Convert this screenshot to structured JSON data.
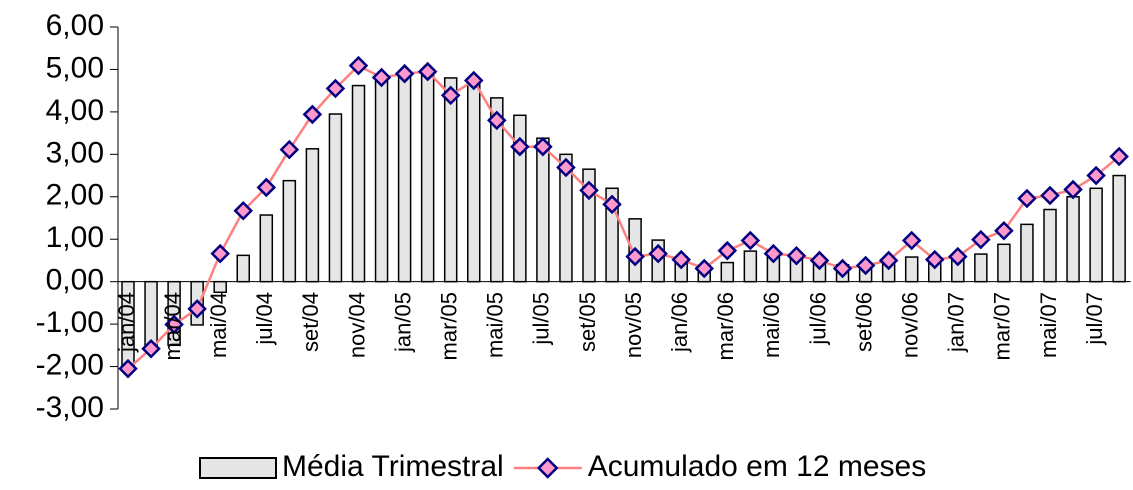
{
  "chart_data": {
    "type": "bar",
    "categories": [
      "jan/04",
      null,
      "mar/04",
      null,
      "mai/04",
      null,
      "jul/04",
      null,
      "set/04",
      null,
      "nov/04",
      null,
      "jan/05",
      null,
      "mar/05",
      null,
      "mai/05",
      null,
      "jul/05",
      null,
      "set/05",
      null,
      "nov/05",
      null,
      "jan/06",
      null,
      "mar/06",
      null,
      "mai/06",
      null,
      "jul/06",
      null,
      "set/06",
      null,
      "nov/06",
      null,
      "jan/07",
      null,
      "mar/07",
      null,
      "mai/07",
      null,
      "jul/07",
      null
    ],
    "series": [
      {
        "name": "Média Trimestral",
        "type": "bar",
        "color": "#e6e6e6",
        "values": [
          -2.05,
          -1.6,
          -1.5,
          -1.02,
          -0.25,
          0.62,
          1.57,
          2.38,
          3.13,
          3.95,
          4.62,
          4.75,
          4.85,
          4.85,
          4.8,
          4.72,
          4.33,
          3.92,
          3.38,
          3.0,
          2.65,
          2.2,
          1.48,
          0.98,
          0.58,
          0.38,
          0.45,
          0.72,
          0.65,
          0.62,
          0.52,
          0.4,
          0.38,
          0.45,
          0.58,
          0.55,
          0.58,
          0.65,
          0.88,
          1.35,
          1.7,
          2.0,
          2.2,
          2.5
        ]
      },
      {
        "name": "Acumulado em 12 meses",
        "type": "line",
        "color": "#ff8080",
        "marker_color": "#ff99cc",
        "marker_edge": "#000080",
        "values": [
          -2.05,
          -1.58,
          -1.01,
          -0.64,
          0.66,
          1.67,
          2.22,
          3.11,
          3.94,
          4.55,
          5.09,
          4.81,
          4.9,
          4.95,
          4.39,
          4.74,
          3.8,
          3.18,
          3.18,
          2.69,
          2.15,
          1.82,
          0.59,
          0.66,
          0.52,
          0.31,
          0.73,
          0.97,
          0.66,
          0.61,
          0.5,
          0.31,
          0.38,
          0.5,
          0.97,
          0.52,
          0.59,
          0.99,
          1.2,
          1.96,
          2.03,
          2.17,
          2.5,
          2.95
        ]
      }
    ],
    "ylim": [
      -3,
      6
    ],
    "yticks": [
      {
        "value": -3,
        "label": "-3,00"
      },
      {
        "value": -2,
        "label": "-2,00"
      },
      {
        "value": -1,
        "label": "-1,00"
      },
      {
        "value": 0,
        "label": "0,00"
      },
      {
        "value": 1,
        "label": "1,00"
      },
      {
        "value": 2,
        "label": "2,00"
      },
      {
        "value": 3,
        "label": "3,00"
      },
      {
        "value": 4,
        "label": "4,00"
      },
      {
        "value": 5,
        "label": "5,00"
      },
      {
        "value": 6,
        "label": "6,00"
      }
    ],
    "legend": "bottom"
  }
}
